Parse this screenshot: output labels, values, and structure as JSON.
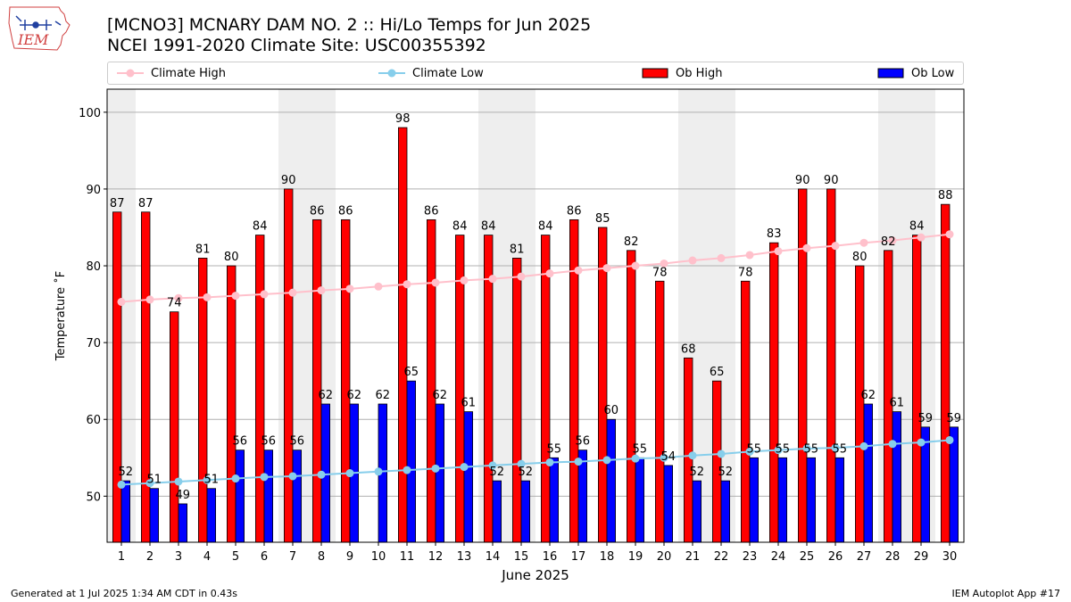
{
  "header": {
    "title_line1": "[MCNO3] MCNARY DAM NO. 2 :: Hi/Lo Temps for Jun 2025",
    "title_line2": "NCEI 1991-2020 Climate Site: USC00355392",
    "logo_text": "IEM"
  },
  "legend": {
    "climate_high": "Climate High",
    "climate_low": "Climate Low",
    "ob_high": "Ob High",
    "ob_low": "Ob Low"
  },
  "footer": {
    "generated": "Generated at 1 Jul 2025 1:34 AM CDT in 0.43s",
    "app": "IEM Autoplot App #17"
  },
  "colors": {
    "ob_high": "#ff0000",
    "ob_low": "#0000ff",
    "climate_high": "#ffc0cb",
    "climate_low": "#87ceeb",
    "weekend_band": "#eeeeee",
    "grid": "#b0b0b0"
  },
  "chart_data": {
    "type": "bar",
    "xlabel": "June 2025",
    "ylabel": "Temperature ˚F",
    "xlim": [
      0.5,
      30.5
    ],
    "ylim": [
      44,
      103
    ],
    "yticks": [
      50,
      60,
      70,
      80,
      90,
      100
    ],
    "grid": "horizontal",
    "legend_position": "top",
    "weekend_days": [
      1,
      7,
      8,
      14,
      15,
      21,
      22,
      28,
      29
    ],
    "categories": [
      "1",
      "2",
      "3",
      "4",
      "5",
      "6",
      "7",
      "8",
      "9",
      "10",
      "11",
      "12",
      "13",
      "14",
      "15",
      "16",
      "17",
      "18",
      "19",
      "20",
      "21",
      "22",
      "23",
      "24",
      "25",
      "26",
      "27",
      "28",
      "29",
      "30"
    ],
    "series": [
      {
        "name": "Ob High",
        "kind": "bar",
        "values": [
          87,
          87,
          74,
          81,
          80,
          84,
          90,
          86,
          86,
          null,
          98,
          86,
          84,
          84,
          81,
          84,
          86,
          85,
          82,
          78,
          68,
          65,
          78,
          83,
          90,
          90,
          80,
          82,
          84,
          88
        ]
      },
      {
        "name": "Ob Low",
        "kind": "bar",
        "values": [
          52,
          51,
          49,
          51,
          56,
          56,
          56,
          62,
          62,
          62,
          65,
          62,
          61,
          52,
          52,
          55,
          56,
          60,
          55,
          54,
          52,
          52,
          55,
          55,
          55,
          55,
          62,
          61,
          59,
          59
        ]
      },
      {
        "name": "Climate High",
        "kind": "line",
        "values": [
          75.3,
          75.6,
          75.8,
          75.9,
          76.1,
          76.3,
          76.5,
          76.8,
          77.0,
          77.3,
          77.6,
          77.8,
          78.1,
          78.3,
          78.6,
          79.0,
          79.4,
          79.7,
          80.0,
          80.3,
          80.7,
          81.0,
          81.4,
          81.9,
          82.3,
          82.6,
          83.0,
          83.3,
          83.7,
          84.1
        ]
      },
      {
        "name": "Climate Low",
        "kind": "line",
        "values": [
          51.5,
          51.7,
          51.9,
          52.1,
          52.3,
          52.5,
          52.6,
          52.8,
          53.0,
          53.2,
          53.4,
          53.6,
          53.8,
          54.0,
          54.2,
          54.4,
          54.5,
          54.7,
          54.9,
          55.0,
          55.3,
          55.5,
          55.8,
          56.0,
          56.2,
          56.3,
          56.5,
          56.8,
          57.0,
          57.3
        ]
      }
    ]
  }
}
